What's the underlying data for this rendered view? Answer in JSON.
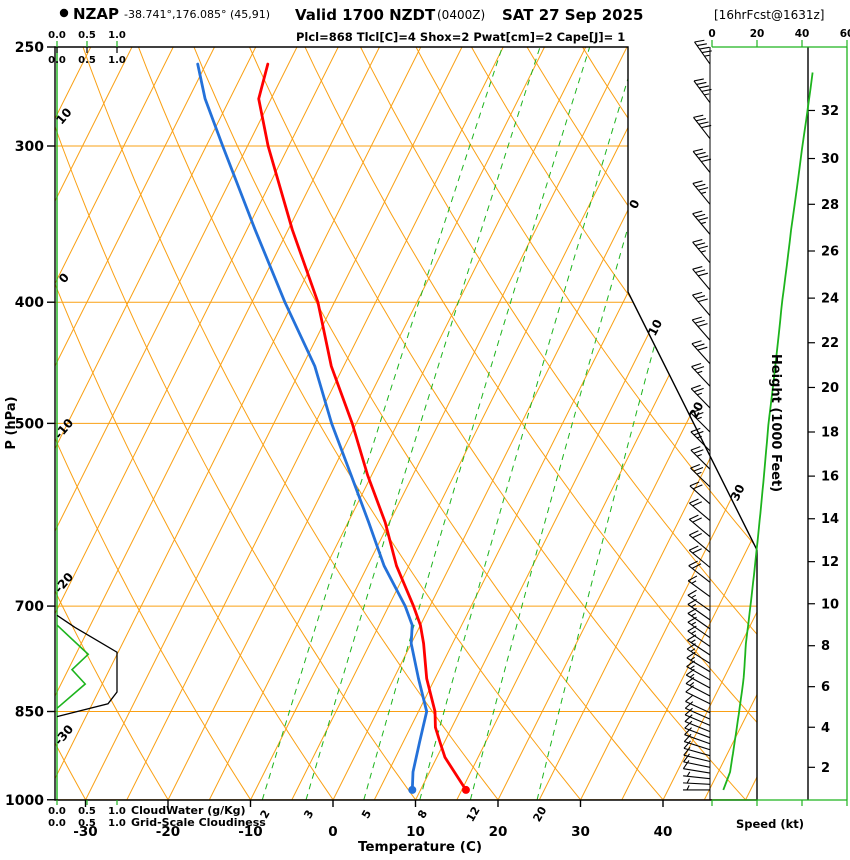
{
  "header": {
    "station": "NZAP",
    "coords": "-38.741°,176.085° (45,91)",
    "valid": "Valid 1700 NZDT",
    "valid_z": "(0400Z)",
    "date": "SAT 27 Sep 2025",
    "fcst": "[16hrFcst@1631z]",
    "indices_line": "Plcl=868 Tlcl[C]=4 Shox=2 Pwat[cm]=2 Cape[J]= 1"
  },
  "axes": {
    "pressure_label": "P (hPa)",
    "pressure_ticks": [
      250,
      300,
      400,
      500,
      700,
      850,
      1000
    ],
    "temperature_label": "Temperature (C)",
    "temperature_ticks": [
      -30,
      -20,
      -10,
      0,
      10,
      20,
      30,
      40
    ],
    "height_label": "Height (1000 Feet)",
    "height_ticks": [
      {
        "label": "2",
        "p": 942
      },
      {
        "label": "4",
        "p": 875
      },
      {
        "label": "6",
        "p": 812
      },
      {
        "label": "8",
        "p": 753
      },
      {
        "label": "10",
        "p": 697
      },
      {
        "label": "12",
        "p": 645
      },
      {
        "label": "14",
        "p": 596
      },
      {
        "label": "16",
        "p": 551
      },
      {
        "label": "18",
        "p": 508
      },
      {
        "label": "20",
        "p": 468
      },
      {
        "label": "22",
        "p": 431
      },
      {
        "label": "24",
        "p": 397
      },
      {
        "label": "26",
        "p": 364
      },
      {
        "label": "28",
        "p": 334
      },
      {
        "label": "30",
        "p": 307
      },
      {
        "label": "32",
        "p": 281
      }
    ],
    "speed_label": "Speed (kt)",
    "speed_ticks": [
      "0",
      "20",
      "40",
      "60"
    ],
    "cloud_scale_ticks": [
      "0.0",
      "0.5",
      "1.0"
    ],
    "cloudwater_label": "CloudWater (g/Kg)",
    "cloudiness_label": "Grid-Scale Cloudiness"
  },
  "grid": {
    "isobars_hPa": [
      250,
      300,
      400,
      500,
      700,
      850,
      1000
    ],
    "isotherms_C": {
      "min": -85,
      "max": 50,
      "step": 5
    },
    "dry_adiabats_C": {
      "min": -30,
      "max": 150,
      "step": 10
    },
    "mixing_ratios_gkg": [
      2,
      3,
      5,
      8,
      12,
      20
    ],
    "adiabat_edge_labels_C": [
      10,
      0,
      -10,
      -20,
      -30
    ],
    "isotherm_edge_labels_C": [
      0,
      10,
      20,
      30
    ],
    "barb_level_ranges": [
      {
        "from": 982,
        "to": 852,
        "step": 10
      },
      {
        "from": 838,
        "to": 706,
        "step": 12
      },
      {
        "from": 688,
        "to": 508,
        "step": 18
      },
      {
        "from": 486,
        "to": 258,
        "step": 19
      }
    ]
  },
  "colors": {
    "orange": "#faa014",
    "green": "#1db41d",
    "red": "#ff0000",
    "blue": "#2471d9",
    "magenta": "#f500a0",
    "black": "#000000",
    "background": "#ffffff"
  },
  "chart_data": {
    "type": "line",
    "subtype": "skew-t log-p atmospheric sounding",
    "title": "NZAP forecast sounding valid 1700 NZDT (0400Z) SAT 27 Sep 2025",
    "ylim_hPa": [
      1000,
      250
    ],
    "xlim_C": [
      -40,
      45
    ],
    "pressure_hPa": [
      982,
      950,
      925,
      900,
      875,
      850,
      800,
      750,
      725,
      700,
      650,
      600,
      550,
      500,
      450,
      400,
      350,
      300,
      275,
      258
    ],
    "series": [
      {
        "name": "Temperature (C)",
        "color": "red",
        "values": [
          15.5,
          13,
          11,
          9.5,
          8,
          7,
          4,
          1.5,
          0,
          -2,
          -6.5,
          -10.5,
          -15.5,
          -20.5,
          -26.5,
          -32,
          -39.5,
          -47.5,
          -51.5,
          -52.5
        ]
      },
      {
        "name": "Dewpoint (C)",
        "color": "blue",
        "values": [
          9,
          8,
          7.5,
          7,
          6.5,
          6,
          3,
          0,
          -1,
          -3,
          -8,
          -12.5,
          -17.5,
          -23,
          -28.5,
          -36,
          -44,
          -53,
          -58,
          -61
        ]
      }
    ],
    "wind_profile": {
      "pressure_hPa": [
        982,
        950,
        900,
        850,
        800,
        750,
        700,
        650,
        600,
        550,
        500,
        450,
        400,
        350,
        300,
        258
      ],
      "speed_kt": [
        5,
        8,
        10,
        12,
        14,
        15,
        17,
        19,
        21,
        23,
        25,
        28,
        31,
        35,
        40,
        45
      ],
      "dir_deg": [
        270,
        280,
        290,
        295,
        300,
        305,
        305,
        310,
        310,
        315,
        315,
        318,
        320,
        320,
        322,
        325
      ]
    },
    "cloudwater_gkg": {
      "pressure_hPa": [
        845,
        808,
        787,
        765,
        725
      ],
      "values": [
        0,
        0.47,
        0.25,
        0.52,
        0
      ]
    },
    "cloudiness_frac": {
      "pressure_hPa": [
        858,
        838,
        820,
        762,
        728,
        712
      ],
      "values": [
        0,
        0.85,
        1,
        1,
        0.3,
        0
      ]
    },
    "indices": {
      "plcl_hPa": 868,
      "tlcl_C": 4,
      "showalter": 2,
      "pwat_cm": 2,
      "cape_J": 1
    }
  }
}
